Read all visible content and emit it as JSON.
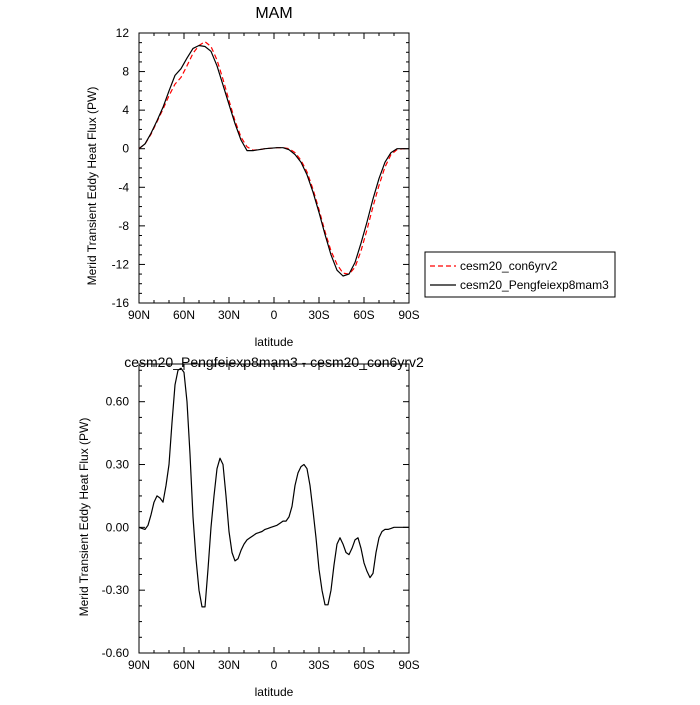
{
  "chart_data": [
    {
      "type": "line",
      "title": "MAM",
      "xlabel": "latitude",
      "ylabel": "Merid Transient Eddy Heat Flux (PW)",
      "xlim": [
        90,
        -90
      ],
      "ylim": [
        -16,
        12
      ],
      "x_ticks": [
        {
          "value": 90,
          "label": "90N"
        },
        {
          "value": 60,
          "label": "60N"
        },
        {
          "value": 30,
          "label": "30N"
        },
        {
          "value": 0,
          "label": "0"
        },
        {
          "value": -30,
          "label": "30S"
        },
        {
          "value": -60,
          "label": "60S"
        },
        {
          "value": -90,
          "label": "90S"
        }
      ],
      "y_ticks": [
        {
          "value": 12,
          "label": "12"
        },
        {
          "value": 8,
          "label": "8"
        },
        {
          "value": 4,
          "label": "4"
        },
        {
          "value": 0,
          "label": "0"
        },
        {
          "value": -4,
          "label": "-4"
        },
        {
          "value": -8,
          "label": "-8"
        },
        {
          "value": -12,
          "label": "-12"
        },
        {
          "value": -16,
          "label": "-16"
        }
      ],
      "legend": {
        "placement": "right-outside",
        "entries": [
          {
            "label": "cesm20_con6yrv2",
            "color": "#ff0000",
            "dash": "dashed"
          },
          {
            "label": "cesm20_Pengfeiexp8mam3",
            "color": "#000000",
            "dash": "solid"
          }
        ]
      },
      "series": [
        {
          "name": "cesm20_con6yrv2",
          "color": "#ff0000",
          "dash": "dashed",
          "x": [
            90,
            86,
            82,
            78,
            74,
            70,
            66,
            62,
            58,
            54,
            50,
            46,
            42,
            38,
            34,
            30,
            26,
            22,
            18,
            14,
            10,
            6,
            2,
            -2,
            -6,
            -10,
            -14,
            -18,
            -22,
            -26,
            -30,
            -34,
            -38,
            -42,
            -46,
            -50,
            -54,
            -58,
            -62,
            -66,
            -70,
            -74,
            -78,
            -82,
            -86,
            -90
          ],
          "y": [
            0,
            0.5,
            1.5,
            2.8,
            4.1,
            5.5,
            6.7,
            7.4,
            8.6,
            9.9,
            10.7,
            11.1,
            10.6,
            9.2,
            7.2,
            5.0,
            2.9,
            1.2,
            0.2,
            -0.15,
            -0.1,
            0.0,
            0.05,
            0.1,
            0.1,
            0.0,
            -0.4,
            -1.2,
            -2.4,
            -4.2,
            -6.3,
            -8.6,
            -10.6,
            -12.0,
            -12.9,
            -13.0,
            -12.3,
            -10.6,
            -8.4,
            -6.0,
            -3.8,
            -1.9,
            -0.6,
            -0.1,
            0,
            0
          ]
        },
        {
          "name": "cesm20_Pengfeiexp8mam3",
          "color": "#000000",
          "dash": "solid",
          "x": [
            90,
            86,
            82,
            78,
            74,
            70,
            66,
            62,
            58,
            54,
            50,
            46,
            42,
            38,
            34,
            30,
            26,
            22,
            18,
            14,
            10,
            6,
            2,
            -2,
            -6,
            -10,
            -14,
            -18,
            -22,
            -26,
            -30,
            -34,
            -38,
            -42,
            -46,
            -50,
            -54,
            -58,
            -62,
            -66,
            -70,
            -74,
            -78,
            -82,
            -86,
            -90
          ],
          "y": [
            0,
            0.5,
            1.6,
            2.9,
            4.3,
            6.0,
            7.6,
            8.3,
            9.4,
            10.4,
            10.7,
            10.6,
            10.1,
            8.6,
            6.6,
            4.6,
            2.6,
            0.9,
            -0.2,
            -0.2,
            -0.1,
            0.0,
            0.05,
            0.1,
            0.1,
            -0.1,
            -0.6,
            -1.4,
            -2.7,
            -4.5,
            -6.6,
            -8.9,
            -11.0,
            -12.6,
            -13.2,
            -13.0,
            -11.8,
            -9.8,
            -7.6,
            -5.2,
            -3.1,
            -1.4,
            -0.4,
            0,
            0,
            0
          ]
        }
      ]
    },
    {
      "type": "line",
      "title": "cesm20_Pengfeiexp8mam3 - cesm20_con6yrv2",
      "xlabel": "latitude",
      "ylabel": "Merid Transient Eddy Heat Flux (PW)",
      "xlim": [
        90,
        -90
      ],
      "ylim": [
        -0.6,
        0.78
      ],
      "x_ticks": [
        {
          "value": 90,
          "label": "90N"
        },
        {
          "value": 60,
          "label": "60N"
        },
        {
          "value": 30,
          "label": "30N"
        },
        {
          "value": 0,
          "label": "0"
        },
        {
          "value": -30,
          "label": "30S"
        },
        {
          "value": -60,
          "label": "60S"
        },
        {
          "value": -90,
          "label": "90S"
        }
      ],
      "y_ticks": [
        {
          "value": 0.6,
          "label": "0.60"
        },
        {
          "value": 0.3,
          "label": "0.30"
        },
        {
          "value": 0.0,
          "label": "0.00"
        },
        {
          "value": -0.3,
          "label": "-0.30"
        },
        {
          "value": -0.6,
          "label": "-0.60"
        }
      ],
      "series": [
        {
          "color": "#000000",
          "dash": "solid",
          "x": [
            90,
            88,
            86,
            84,
            82,
            80,
            78,
            76,
            74,
            72,
            70,
            68,
            66,
            64,
            62,
            60,
            58,
            56,
            54,
            52,
            50,
            48,
            46,
            44,
            42,
            40,
            38,
            36,
            34,
            32,
            30,
            28,
            26,
            24,
            22,
            20,
            18,
            16,
            14,
            12,
            10,
            8,
            6,
            4,
            2,
            0,
            -2,
            -4,
            -6,
            -8,
            -10,
            -12,
            -14,
            -16,
            -18,
            -20,
            -22,
            -24,
            -26,
            -28,
            -30,
            -32,
            -34,
            -36,
            -38,
            -40,
            -42,
            -44,
            -46,
            -48,
            -50,
            -52,
            -54,
            -56,
            -58,
            -60,
            -62,
            -64,
            -66,
            -68,
            -70,
            -72,
            -74,
            -76,
            -78,
            -80,
            -82,
            -84,
            -86,
            -88,
            -90
          ],
          "y": [
            0,
            -0.005,
            -0.01,
            0.01,
            0.06,
            0.12,
            0.15,
            0.14,
            0.12,
            0.2,
            0.3,
            0.5,
            0.68,
            0.75,
            0.76,
            0.74,
            0.6,
            0.35,
            0.05,
            -0.15,
            -0.3,
            -0.38,
            -0.38,
            -0.2,
            0,
            0.15,
            0.28,
            0.33,
            0.3,
            0.15,
            -0.02,
            -0.12,
            -0.16,
            -0.15,
            -0.11,
            -0.08,
            -0.06,
            -0.05,
            -0.04,
            -0.03,
            -0.025,
            -0.02,
            -0.01,
            -0.005,
            0.0,
            0.005,
            0.01,
            0.02,
            0.03,
            0.03,
            0.05,
            0.1,
            0.2,
            0.26,
            0.29,
            0.3,
            0.28,
            0.2,
            0.08,
            -0.05,
            -0.2,
            -0.3,
            -0.37,
            -0.37,
            -0.3,
            -0.18,
            -0.08,
            -0.05,
            -0.08,
            -0.12,
            -0.13,
            -0.1,
            -0.06,
            -0.05,
            -0.1,
            -0.17,
            -0.21,
            -0.24,
            -0.22,
            -0.12,
            -0.05,
            -0.02,
            -0.01,
            -0.01,
            -0.005,
            0,
            0,
            0,
            0,
            0,
            0
          ]
        }
      ]
    }
  ]
}
